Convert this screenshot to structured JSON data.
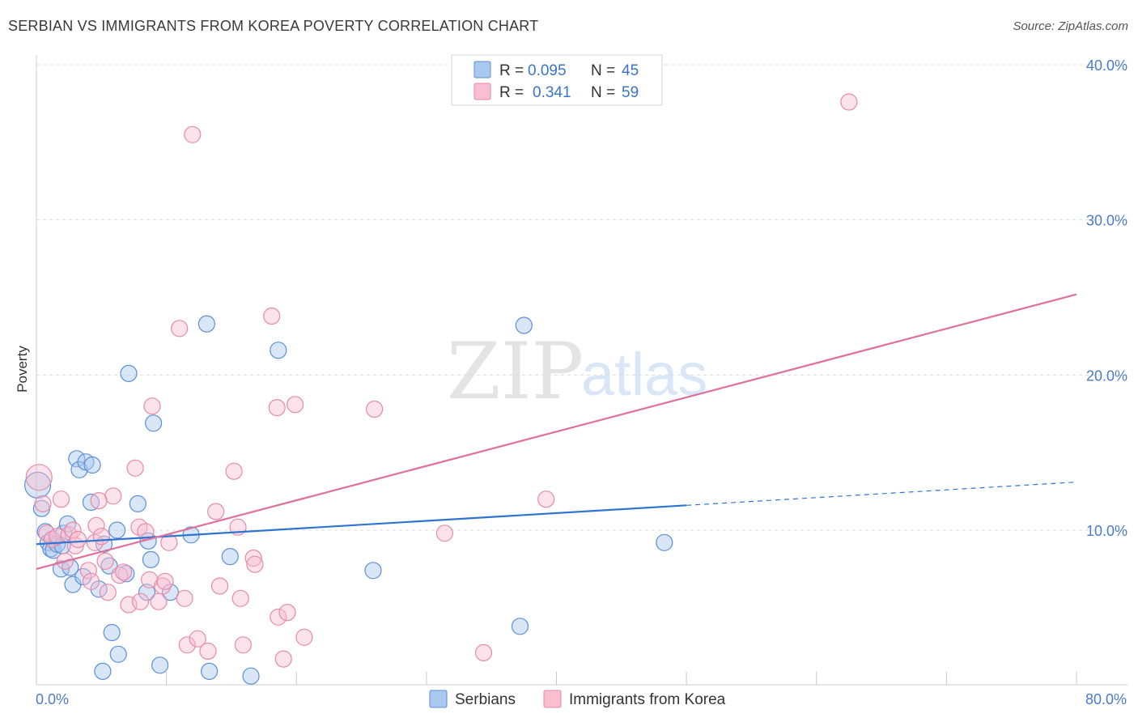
{
  "header": {
    "title": "SERBIAN VS IMMIGRANTS FROM KOREA POVERTY CORRELATION CHART",
    "source": "Source: ZipAtlas.com"
  },
  "watermark": {
    "zip": "ZIP",
    "atlas": "atlas"
  },
  "legend": {
    "r_label": "R =",
    "n_label": "N =",
    "series": [
      {
        "r": "0.095",
        "n": "45"
      },
      {
        "r": "0.341",
        "n": "59"
      }
    ]
  },
  "colors": {
    "serbians_fill": "#a8c8f0",
    "serbians_stroke": "#5b8fd6",
    "serbians_line": "#2f74d0",
    "korea_fill": "#f8bfd0",
    "korea_stroke": "#e58aa8",
    "korea_line": "#e0709a",
    "value_text": "#3b74c9"
  },
  "chart_data": {
    "type": "scatter",
    "title": "SERBIAN VS IMMIGRANTS FROM KOREA POVERTY CORRELATION CHART",
    "xlabel": "",
    "ylabel": "Poverty",
    "xlim": [
      0,
      80
    ],
    "ylim": [
      0,
      42
    ],
    "x_tick_labels": [
      "0.0%",
      "80.0%"
    ],
    "y_ticks": [
      10,
      20,
      30,
      40
    ],
    "y_tick_labels": [
      "10.0%",
      "20.0%",
      "30.0%",
      "40.0%"
    ],
    "legend_placement": "top-center",
    "series": [
      {
        "name": "Serbians",
        "r": 0.095,
        "n": 45,
        "trend": {
          "x0": 0,
          "y0": 9.1,
          "x1": 50,
          "y1": 11.6,
          "dashed_to_x": 80,
          "dashed_to_y": 13.1
        },
        "points": [
          [
            0.1,
            12.9,
            16
          ],
          [
            0.4,
            11.4,
            10
          ],
          [
            0.7,
            9.9,
            10
          ],
          [
            0.9,
            9.2,
            10
          ],
          [
            1.1,
            8.8,
            10
          ],
          [
            1.3,
            8.7,
            10
          ],
          [
            1.6,
            9.1,
            10
          ],
          [
            1.9,
            7.5,
            10
          ],
          [
            2.1,
            9.8,
            10
          ],
          [
            2.4,
            10.4,
            10
          ],
          [
            2.6,
            7.6,
            10
          ],
          [
            2.8,
            6.5,
            10
          ],
          [
            3.1,
            14.6,
            10
          ],
          [
            3.3,
            13.9,
            10
          ],
          [
            3.8,
            14.4,
            10
          ],
          [
            4.3,
            14.2,
            10
          ],
          [
            3.6,
            7.0,
            10
          ],
          [
            4.2,
            11.8,
            10
          ],
          [
            4.8,
            6.2,
            10
          ],
          [
            5.2,
            9.1,
            10
          ],
          [
            5.6,
            7.7,
            10
          ],
          [
            5.8,
            3.4,
            10
          ],
          [
            6.2,
            10.0,
            10
          ],
          [
            6.3,
            2.0,
            10
          ],
          [
            6.9,
            7.2,
            10
          ],
          [
            7.1,
            20.1,
            10
          ],
          [
            7.8,
            11.7,
            10
          ],
          [
            8.6,
            9.3,
            10
          ],
          [
            8.8,
            8.1,
            10
          ],
          [
            9.0,
            16.9,
            10
          ],
          [
            8.5,
            6.0,
            10
          ],
          [
            9.5,
            1.3,
            10
          ],
          [
            10.3,
            6.0,
            10
          ],
          [
            11.9,
            9.7,
            10
          ],
          [
            13.1,
            23.3,
            10
          ],
          [
            13.3,
            0.9,
            10
          ],
          [
            14.9,
            8.3,
            10
          ],
          [
            16.5,
            0.6,
            10
          ],
          [
            18.6,
            21.6,
            10
          ],
          [
            25.9,
            7.4,
            10
          ],
          [
            37.2,
            3.8,
            10
          ],
          [
            37.5,
            23.2,
            10
          ],
          [
            48.3,
            9.2,
            10
          ],
          [
            5.1,
            0.9,
            10
          ],
          [
            2.0,
            9.0,
            10
          ]
        ]
      },
      {
        "name": "Immigrants from Korea",
        "r": 0.341,
        "n": 59,
        "trend": {
          "x0": 0,
          "y0": 7.5,
          "x1": 80,
          "y1": 25.2
        },
        "points": [
          [
            0.2,
            13.4,
            16
          ],
          [
            0.5,
            11.7,
            10
          ],
          [
            0.8,
            9.8,
            10
          ],
          [
            1.2,
            9.4,
            10
          ],
          [
            1.6,
            9.6,
            10
          ],
          [
            1.9,
            12.0,
            10
          ],
          [
            2.2,
            8.0,
            10
          ],
          [
            2.5,
            9.7,
            10
          ],
          [
            2.8,
            10.0,
            10
          ],
          [
            3.0,
            9.0,
            10
          ],
          [
            3.2,
            9.4,
            10
          ],
          [
            4.0,
            7.4,
            10
          ],
          [
            4.2,
            6.7,
            10
          ],
          [
            4.5,
            9.2,
            10
          ],
          [
            4.6,
            10.3,
            10
          ],
          [
            5.0,
            9.6,
            10
          ],
          [
            5.3,
            8.0,
            10
          ],
          [
            5.5,
            6.0,
            10
          ],
          [
            5.9,
            12.2,
            10
          ],
          [
            6.4,
            7.1,
            10
          ],
          [
            6.7,
            7.3,
            10
          ],
          [
            7.1,
            5.2,
            10
          ],
          [
            7.6,
            14.0,
            10
          ],
          [
            7.9,
            10.2,
            10
          ],
          [
            8.0,
            5.4,
            10
          ],
          [
            8.4,
            9.9,
            10
          ],
          [
            8.7,
            6.8,
            10
          ],
          [
            8.9,
            18.0,
            10
          ],
          [
            9.4,
            5.4,
            10
          ],
          [
            9.7,
            6.4,
            10
          ],
          [
            9.9,
            6.7,
            10
          ],
          [
            10.2,
            9.2,
            10
          ],
          [
            11.0,
            23.0,
            10
          ],
          [
            11.4,
            5.6,
            10
          ],
          [
            11.6,
            2.6,
            10
          ],
          [
            12.0,
            35.5,
            10
          ],
          [
            12.4,
            3.0,
            10
          ],
          [
            13.2,
            2.2,
            10
          ],
          [
            13.8,
            11.2,
            10
          ],
          [
            14.1,
            6.4,
            10
          ],
          [
            15.2,
            13.8,
            10
          ],
          [
            15.5,
            10.2,
            10
          ],
          [
            15.7,
            5.6,
            10
          ],
          [
            15.9,
            2.6,
            10
          ],
          [
            16.7,
            8.2,
            10
          ],
          [
            16.8,
            7.8,
            10
          ],
          [
            18.1,
            23.8,
            10
          ],
          [
            18.5,
            17.9,
            10
          ],
          [
            18.6,
            4.4,
            10
          ],
          [
            19.0,
            1.7,
            10
          ],
          [
            19.3,
            4.7,
            10
          ],
          [
            19.9,
            18.1,
            10
          ],
          [
            20.6,
            3.1,
            10
          ],
          [
            26.0,
            17.8,
            10
          ],
          [
            31.4,
            9.8,
            10
          ],
          [
            34.4,
            2.1,
            10
          ],
          [
            39.2,
            12.0,
            10
          ],
          [
            62.5,
            37.6,
            10
          ],
          [
            4.8,
            11.9,
            10
          ]
        ]
      }
    ]
  },
  "bottom_legend": {
    "items": [
      {
        "label": "Serbians"
      },
      {
        "label": "Immigrants from Korea"
      }
    ]
  }
}
